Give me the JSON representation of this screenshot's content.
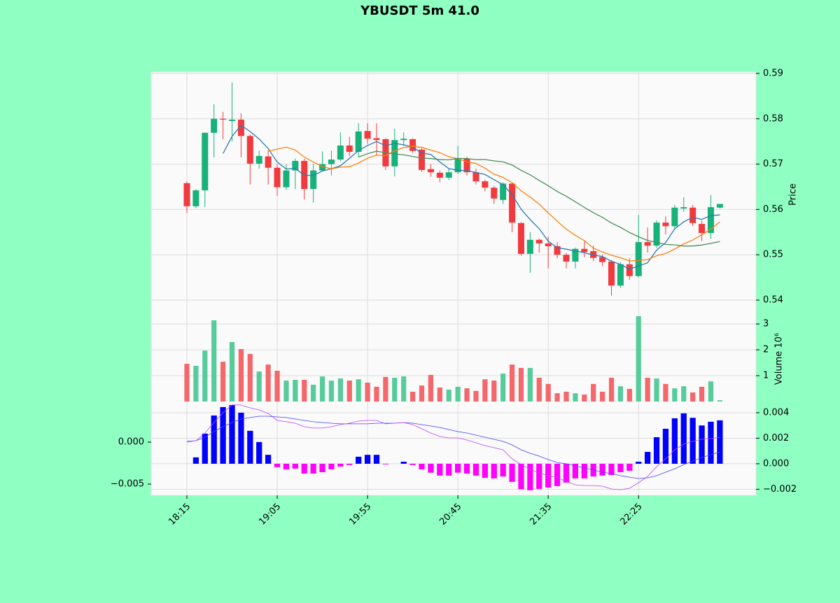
{
  "chart_data": [
    {
      "type": "candlestick",
      "title": "YBUSDT 5m 41.0",
      "categories": [
        "18:15",
        null,
        null,
        null,
        null,
        null,
        null,
        null,
        null,
        null,
        "19:05",
        null,
        null,
        null,
        null,
        null,
        null,
        null,
        null,
        null,
        "19:55",
        null,
        null,
        null,
        null,
        null,
        null,
        null,
        null,
        null,
        "20:45",
        null,
        null,
        null,
        null,
        null,
        null,
        null,
        null,
        null,
        "21:35",
        null,
        null,
        null,
        null,
        null,
        null,
        null,
        null,
        null,
        "22:25",
        null,
        null,
        null,
        null,
        null,
        null,
        null,
        null,
        null
      ],
      "open": [
        0.5658,
        0.5607,
        0.5642,
        0.5769,
        0.58,
        0.5795,
        0.5798,
        0.5762,
        0.5701,
        0.5717,
        0.5692,
        0.5649,
        0.5686,
        0.5707,
        0.5645,
        0.5686,
        0.57,
        0.571,
        0.5741,
        0.5727,
        0.5773,
        0.5757,
        0.5755,
        0.5695,
        0.5753,
        0.5755,
        0.5732,
        0.5689,
        0.5681,
        0.567,
        0.5682,
        0.5712,
        0.5682,
        0.5662,
        0.5648,
        0.5621,
        0.5657,
        0.557,
        0.5502,
        0.5533,
        0.5525,
        0.5519,
        0.55,
        0.5485,
        0.5513,
        0.5508,
        0.5495,
        0.5485,
        0.5432,
        0.5479,
        0.5453,
        0.5528,
        0.552,
        0.5571,
        0.5563,
        0.5602,
        0.5604,
        0.5568,
        0.5548,
        0.5604
      ],
      "high": [
        0.5662,
        0.5645,
        0.577,
        0.5832,
        0.5815,
        0.588,
        0.5812,
        0.5765,
        0.573,
        0.573,
        0.57,
        0.57,
        0.5712,
        0.5712,
        0.57,
        0.5728,
        0.573,
        0.577,
        0.576,
        0.579,
        0.579,
        0.579,
        0.5757,
        0.5778,
        0.577,
        0.5757,
        0.5735,
        0.57,
        0.5686,
        0.569,
        0.574,
        0.5716,
        0.569,
        0.5666,
        0.5652,
        0.566,
        0.566,
        0.5572,
        0.555,
        0.5536,
        0.554,
        0.5528,
        0.5504,
        0.5516,
        0.553,
        0.552,
        0.55,
        0.5488,
        0.5483,
        0.5492,
        0.5588,
        0.556,
        0.5576,
        0.5585,
        0.561,
        0.5627,
        0.561,
        0.5575,
        0.5632,
        0.5612
      ],
      "low": [
        0.5592,
        0.5603,
        0.5605,
        0.5715,
        0.5755,
        0.575,
        0.5715,
        0.5655,
        0.569,
        0.5655,
        0.563,
        0.5643,
        0.5645,
        0.5622,
        0.5615,
        0.5684,
        0.5675,
        0.5706,
        0.5718,
        0.5715,
        0.5745,
        0.572,
        0.5687,
        0.5673,
        0.574,
        0.5725,
        0.5683,
        0.5672,
        0.566,
        0.5665,
        0.5678,
        0.5675,
        0.5655,
        0.564,
        0.5612,
        0.5612,
        0.555,
        0.5498,
        0.546,
        0.5505,
        0.547,
        0.5492,
        0.547,
        0.547,
        0.5495,
        0.5486,
        0.5475,
        0.541,
        0.5427,
        0.5445,
        0.545,
        0.5505,
        0.5515,
        0.5545,
        0.5558,
        0.5595,
        0.5563,
        0.553,
        0.5535,
        0.5602
      ],
      "close": [
        0.5607,
        0.5642,
        0.5769,
        0.58,
        0.5798,
        0.5798,
        0.5762,
        0.5701,
        0.5718,
        0.5692,
        0.5649,
        0.5686,
        0.5707,
        0.5645,
        0.5686,
        0.57,
        0.571,
        0.5741,
        0.5727,
        0.5772,
        0.5756,
        0.5753,
        0.5695,
        0.5753,
        0.5756,
        0.5729,
        0.5687,
        0.5682,
        0.567,
        0.5682,
        0.5712,
        0.5682,
        0.5662,
        0.5648,
        0.5624,
        0.5657,
        0.5571,
        0.5502,
        0.5533,
        0.5525,
        0.5519,
        0.55,
        0.5485,
        0.5513,
        0.5506,
        0.5493,
        0.5484,
        0.5432,
        0.5479,
        0.5453,
        0.5528,
        0.552,
        0.5571,
        0.5563,
        0.5604,
        0.5605,
        0.557,
        0.5548,
        0.5605,
        0.5612
      ],
      "up_color": "#17b17a",
      "down_color": "#f23a3e",
      "series": [
        {
          "color": "#2a7ab0",
          "values": [
            null,
            null,
            null,
            null,
            0.57232,
            0.57614,
            0.57854,
            0.57718,
            0.57554,
            0.57342,
            0.57044,
            0.56892,
            0.56904,
            0.56758,
            0.56746,
            0.56848,
            0.56896,
            0.56964,
            0.57128,
            0.573,
            0.57412,
            0.57498,
            0.57406,
            0.57458,
            0.57426,
            0.57372,
            0.5724,
            0.57214,
            0.57048,
            0.569,
            0.56866,
            0.56856,
            0.56816,
            0.56772,
            0.56656,
            0.56546,
            0.56324,
            0.56004,
            0.55774,
            0.55576,
            0.553,
            0.55158,
            0.55124,
            0.55084,
            0.55046,
            0.54994,
            0.54962,
            0.54856,
            0.54788,
            0.54682,
            0.54752,
            0.54824,
            0.55102,
            0.5527,
            0.55572,
            0.55726,
            0.55826,
            0.5578,
            0.55864,
            0.5588
          ]
        },
        {
          "color": "#ff7f0e",
          "values": [
            null,
            null,
            null,
            null,
            null,
            null,
            null,
            null,
            null,
            0.57287,
            0.57329,
            0.57373,
            0.57311,
            0.57156,
            0.57044,
            0.56946,
            0.56894,
            0.56934,
            0.56943,
            0.57023,
            0.5713,
            0.57197,
            0.57185,
            0.57293,
            0.57363,
            0.57392,
            0.57369,
            0.5731,
            0.57253,
            0.57163,
            0.57119,
            0.57048,
            0.57015,
            0.5691,
            0.56778,
            0.56706,
            0.5659,
            0.5641,
            0.56273,
            0.56116,
            0.55923,
            0.55741,
            0.55564,
            0.55429,
            0.55311,
            0.55147,
            0.5506,
            0.5499,
            0.54936,
            0.54864,
            0.54873,
            0.54893,
            0.54979,
            0.55029,
            0.55127,
            0.55239,
            0.55325,
            0.55441,
            0.55567,
            0.55726
          ]
        },
        {
          "color": "#4a8f5c",
          "values": [
            null,
            null,
            null,
            null,
            null,
            null,
            null,
            null,
            null,
            null,
            null,
            null,
            null,
            null,
            null,
            null,
            null,
            null,
            null,
            0.57155,
            0.5723,
            0.57285,
            0.57248,
            0.57225,
            0.57204,
            0.57169,
            0.57132,
            0.57122,
            0.57098,
            0.57093,
            0.57125,
            0.57123,
            0.571,
            0.57102,
            0.57071,
            0.57049,
            0.5698,
            0.5686,
            0.56763,
            0.5664,
            0.56521,
            0.56395,
            0.5629,
            0.5617,
            0.56045,
            0.55927,
            0.55825,
            0.557,
            0.55605,
            0.5549,
            0.55398,
            0.55317,
            0.55272,
            0.55229,
            0.55219,
            0.55193,
            0.55193,
            0.55216,
            0.55252,
            0.55295
          ]
        }
      ],
      "xlim": [
        -3.95,
        63.0
      ],
      "ylim": [
        0.5363,
        0.5903
      ],
      "yticks": [
        0.54,
        0.55,
        0.56,
        0.57,
        0.58,
        0.59
      ],
      "ylabel": "Price",
      "grid": true
    },
    {
      "type": "bar",
      "ylabel": "Volume  10⁶",
      "values": [
        1.46,
        1.38,
        1.97,
        3.14,
        1.54,
        2.3,
        2.03,
        1.84,
        1.16,
        1.43,
        1.19,
        0.81,
        0.84,
        0.84,
        0.65,
        0.97,
        0.81,
        0.89,
        0.81,
        0.86,
        0.73,
        0.57,
        0.95,
        0.92,
        0.97,
        0.38,
        0.62,
        1.03,
        0.54,
        0.46,
        0.57,
        0.51,
        0.41,
        0.86,
        0.81,
        1.08,
        1.43,
        1.3,
        1.3,
        0.92,
        0.68,
        0.32,
        0.38,
        0.32,
        0.27,
        0.68,
        0.38,
        0.92,
        0.59,
        0.49,
        3.3,
        0.92,
        0.89,
        0.68,
        0.51,
        0.59,
        0.35,
        0.57,
        0.78,
        0.05
      ],
      "up_color": "#56cc9d",
      "down_color": "#f4676b",
      "ylim": [
        0,
        3.3
      ],
      "yticks": [
        1,
        2,
        3
      ],
      "grid": true
    },
    {
      "type": "macd",
      "series": [
        {
          "type": "bar",
          "axis": "y2",
          "color": "#0000ff",
          "negative_color": "#ff00ff",
          "values": [
            0,
            0.0005,
            0.00236,
            0.00378,
            0.00444,
            0.0046,
            0.004,
            0.00258,
            0.0017,
            0.0007,
            -0.00027,
            -0.00044,
            -0.00038,
            -0.00077,
            -0.00077,
            -0.00066,
            -0.00044,
            -0.00022,
            -0.0001,
            0.00055,
            0.0007,
            0.0007,
            -5e-05,
            0,
            0.00016,
            -0.0001,
            -0.00044,
            -0.0007,
            -0.00093,
            -0.00093,
            -0.0007,
            -0.00077,
            -0.00093,
            -0.0011,
            -0.00115,
            -0.001,
            -0.00142,
            -0.002,
            -0.00208,
            -0.00197,
            -0.00186,
            -0.00175,
            -0.00148,
            -0.00115,
            -0.00115,
            -0.001,
            -0.00093,
            -0.00088,
            -0.00066,
            -0.00055,
            0.00016,
            0.00093,
            0.00208,
            0.00274,
            0.00356,
            0.00395,
            0.0036,
            0.003,
            0.00329,
            0.0034
          ]
        },
        {
          "type": "line",
          "axis": "y",
          "color": "#4040ff",
          "values": [
            8e-05,
            0.00017,
            0.00058,
            0.00125,
            0.00183,
            0.00233,
            0.00275,
            0.00292,
            0.00308,
            0.00308,
            0.003,
            0.00292,
            0.00275,
            0.00258,
            0.00242,
            0.00233,
            0.00225,
            0.00217,
            0.00217,
            0.00217,
            0.00217,
            0.00225,
            0.00225,
            0.00225,
            0.00233,
            0.00225,
            0.00208,
            0.00192,
            0.00175,
            0.0015,
            0.00125,
            0.00108,
            0.00083,
            0.00058,
            0.00033,
            8e-05,
            -0.00033,
            -0.00092,
            -0.00133,
            -0.00167,
            -0.00208,
            -0.00242,
            -0.00258,
            -0.00283,
            -0.00308,
            -0.00333,
            -0.00358,
            -0.00375,
            -0.004,
            -0.00417,
            -0.00433,
            -0.00425,
            -0.004,
            -0.00358,
            -0.00317,
            -0.00267,
            -0.00225,
            -0.00183,
            -0.0015,
            -0.00117
          ]
        },
        {
          "type": "line",
          "axis": "y",
          "color": "#c040ff",
          "values": [
            0,
            0.00017,
            0.00108,
            0.00233,
            0.0035,
            0.00442,
            0.00442,
            0.00408,
            0.00383,
            0.00342,
            0.00258,
            0.00242,
            0.00225,
            0.00183,
            0.00167,
            0.00167,
            0.00183,
            0.00208,
            0.00225,
            0.0025,
            0.00258,
            0.00258,
            0.00217,
            0.00225,
            0.00233,
            0.00208,
            0.00158,
            0.00108,
            0.00067,
            0.0005,
            0.0005,
            0.00025,
            -8e-05,
            -0.00042,
            -0.00067,
            -0.00092,
            -0.002,
            -0.00267,
            -0.00325,
            -0.00367,
            -0.004,
            -0.00425,
            -0.00467,
            -0.00508,
            -0.00517,
            -0.00517,
            -0.00525,
            -0.00558,
            -0.00567,
            -0.0055,
            -0.00483,
            -0.00408,
            -0.00292,
            -0.002,
            -0.00092,
            -0.00025,
            8e-05,
            0.00033,
            0.00042,
            0.00058
          ]
        }
      ],
      "ylim": [
        -0.00633,
        0.00458
      ],
      "yticks": [
        {
          "value": -0.005,
          "label": "−0.005"
        },
        {
          "value": 0,
          "label": "0.000"
        }
      ],
      "y2lim": [
        -0.00247,
        0.00471
      ],
      "y2ticks": [
        {
          "value": -0.002,
          "label": "−0.002"
        },
        {
          "value": 0,
          "label": "0.000"
        },
        {
          "value": 0.002,
          "label": "0.002"
        },
        {
          "value": 0.004,
          "label": "0.004"
        }
      ],
      "grid": true
    }
  ]
}
